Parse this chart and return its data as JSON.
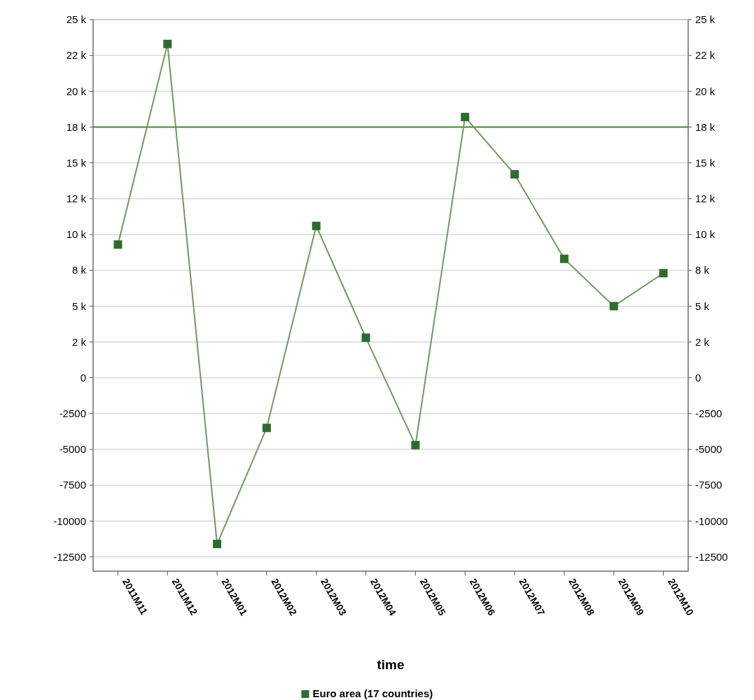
{
  "chart_data": {
    "type": "line",
    "xlabel": "time",
    "categories": [
      "2011M11",
      "2011M12",
      "2012M01",
      "2012M02",
      "2012M03",
      "2012M04",
      "2012M05",
      "2012M06",
      "2012M07",
      "2012M08",
      "2012M09",
      "2012M10"
    ],
    "series": [
      {
        "name": "Euro area (17 countries)",
        "color": "#2f6b2f",
        "values": [
          9300,
          23300,
          -11600,
          -3500,
          10600,
          2800,
          -4700,
          18200,
          14200,
          8300,
          5000,
          7300
        ]
      }
    ],
    "ylim": [
      -13500,
      25000
    ],
    "yticks": [
      {
        "value": 25000,
        "label": "25 k"
      },
      {
        "value": 22500,
        "label": "22 k"
      },
      {
        "value": 20000,
        "label": "20 k"
      },
      {
        "value": 17500,
        "label": "18 k"
      },
      {
        "value": 15000,
        "label": "15 k"
      },
      {
        "value": 12500,
        "label": "12 k"
      },
      {
        "value": 10000,
        "label": "10 k"
      },
      {
        "value": 7500,
        "label": "8 k"
      },
      {
        "value": 5000,
        "label": "5 k"
      },
      {
        "value": 2500,
        "label": "2 k"
      },
      0,
      -2500,
      -5000,
      -7500,
      -10000,
      -12500
    ],
    "y2lim": [
      -13500,
      25000
    ],
    "y2ticks": [
      {
        "value": 25000,
        "label": "25 k"
      },
      {
        "value": 22500,
        "label": "22 k"
      },
      {
        "value": 20000,
        "label": "20 k"
      },
      {
        "value": 17500,
        "label": "18 k"
      },
      {
        "value": 15000,
        "label": "15 k"
      },
      {
        "value": 12500,
        "label": "12 k"
      },
      {
        "value": 10000,
        "label": "10 k"
      },
      {
        "value": 7500,
        "label": "8 k"
      },
      {
        "value": 5000,
        "label": "5 k"
      },
      {
        "value": 2500,
        "label": "2 k"
      },
      0,
      -2500,
      -5000,
      -7500,
      -10000,
      -12500
    ],
    "ref_lines": [
      {
        "axis": "y",
        "value": 17500,
        "color": "#3c8c1e"
      }
    ],
    "grid": "y",
    "legend": "bottom",
    "marker": "square",
    "line_style": "solid"
  }
}
